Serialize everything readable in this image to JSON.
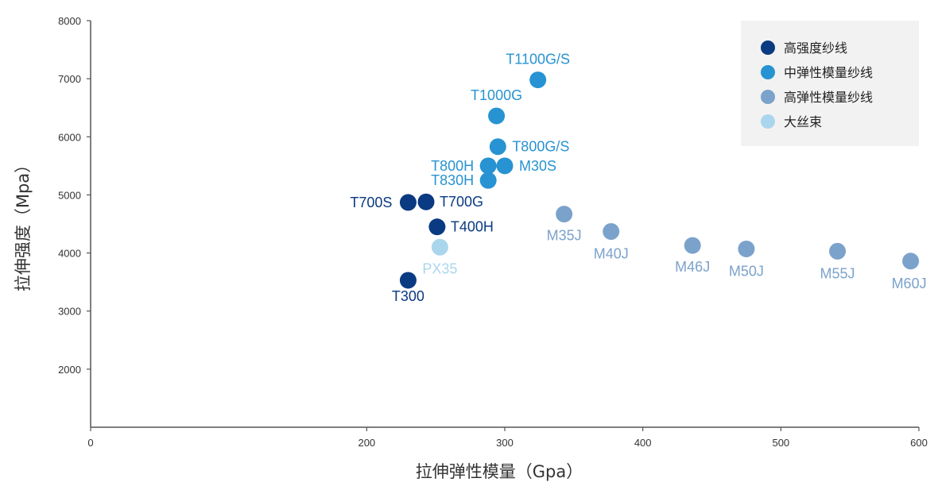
{
  "chart_data": {
    "type": "scatter",
    "xlabel": "拉伸弹性模量（Gpa）",
    "ylabel": "拉伸强度（Mpa）",
    "xlim": [
      0,
      600
    ],
    "ylim": [
      1000,
      8000
    ],
    "x_ticks": [
      0,
      200,
      300,
      400,
      500,
      600
    ],
    "y_ticks": [
      2000,
      3000,
      4000,
      5000,
      6000,
      7000,
      8000
    ],
    "grid": false,
    "legend_position": "top-right",
    "series": [
      {
        "name": "高强度纱线",
        "color": "#0a3a82",
        "points": [
          {
            "label": "T300",
            "x": 230,
            "y": 3530
          },
          {
            "label": "T700S",
            "x": 230,
            "y": 4870
          },
          {
            "label": "T700G",
            "x": 243,
            "y": 4880
          },
          {
            "label": "T400H",
            "x": 251,
            "y": 4450
          }
        ]
      },
      {
        "name": "中弹性模量纱线",
        "color": "#2793d2",
        "points": [
          {
            "label": "T800H",
            "x": 288,
            "y": 5500
          },
          {
            "label": "T830H",
            "x": 288,
            "y": 5250
          },
          {
            "label": "M30S",
            "x": 300,
            "y": 5500
          },
          {
            "label": "T800G/S",
            "x": 295,
            "y": 5830
          },
          {
            "label": "T1000G",
            "x": 294,
            "y": 6360
          },
          {
            "label": "T1100G/S",
            "x": 324,
            "y": 6980
          }
        ]
      },
      {
        "name": "高弹性模量纱线",
        "color": "#7ba2cb",
        "points": [
          {
            "label": "M35J",
            "x": 343,
            "y": 4670
          },
          {
            "label": "M40J",
            "x": 377,
            "y": 4370
          },
          {
            "label": "M46J",
            "x": 436,
            "y": 4130
          },
          {
            "label": "M50J",
            "x": 475,
            "y": 4070
          },
          {
            "label": "M55J",
            "x": 541,
            "y": 4030
          },
          {
            "label": "M60J",
            "x": 594,
            "y": 3860
          }
        ]
      },
      {
        "name": "大丝束",
        "color": "#a9d6ed",
        "points": [
          {
            "label": "PX35",
            "x": 253,
            "y": 4100
          }
        ]
      }
    ]
  }
}
